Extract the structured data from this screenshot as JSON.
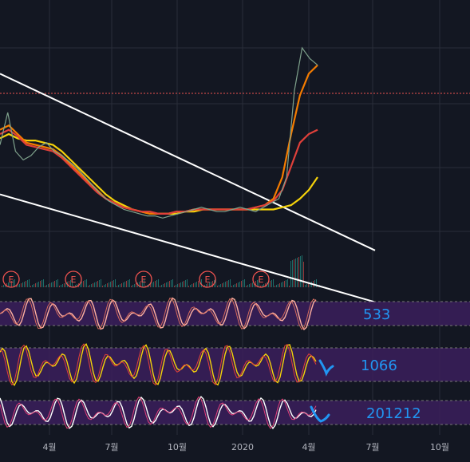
{
  "chart_data": {
    "type": "line",
    "title": "",
    "header_fragment": "",
    "x_ticks": [
      "4월",
      "7월",
      "10월",
      "2020",
      "4월",
      "7월",
      "10월"
    ],
    "price": {
      "x_range": [
        0,
        210
      ],
      "y_range": [
        0,
        100
      ],
      "values": [
        55,
        70,
        52,
        48,
        50,
        54,
        56,
        52,
        50,
        47,
        44,
        40,
        36,
        32,
        29,
        27,
        25,
        24,
        23,
        22,
        22,
        21,
        22,
        23,
        24,
        25,
        26,
        25,
        24,
        24,
        25,
        26,
        25,
        24,
        26,
        28,
        30,
        40,
        80,
        100,
        95,
        92
      ],
      "reference_level": 80,
      "ma_series": [
        {
          "color": "#f5d20a",
          "values": [
            58,
            60,
            58,
            57,
            57,
            56,
            55,
            52,
            48,
            44,
            40,
            36,
            32,
            29,
            27,
            25,
            24,
            23,
            23,
            23,
            23,
            24,
            24,
            25,
            25,
            25,
            25,
            25,
            25,
            25,
            25,
            25,
            26,
            27,
            30,
            34,
            40
          ]
        },
        {
          "color": "#f57c00",
          "values": [
            62,
            64,
            60,
            56,
            55,
            54,
            53,
            50,
            46,
            42,
            38,
            34,
            30,
            28,
            26,
            25,
            24,
            23,
            23,
            23,
            24,
            24,
            25,
            25,
            25,
            25,
            25,
            25,
            25,
            26,
            27,
            30,
            40,
            60,
            78,
            88,
            92
          ]
        },
        {
          "color": "#e0403a",
          "values": [
            60,
            62,
            59,
            55,
            54,
            53,
            52,
            49,
            45,
            41,
            37,
            33,
            30,
            28,
            26,
            25,
            24,
            24,
            23,
            23,
            24,
            24,
            25,
            25,
            25,
            25,
            25,
            25,
            25,
            26,
            27,
            29,
            34,
            45,
            56,
            60,
            62
          ]
        }
      ],
      "trendlines": [
        {
          "from": [
            0,
            88
          ],
          "to": [
            210,
            6
          ]
        },
        {
          "from": [
            0,
            32
          ],
          "to": [
            210,
            -18
          ]
        }
      ],
      "earnings_markers": [
        "E",
        "E",
        "E",
        "E",
        "E"
      ]
    },
    "oscillators": [
      {
        "label": "533",
        "label_color": "#2196f3",
        "line_colors": [
          "#ffb0a0",
          "#d46a5e"
        ]
      },
      {
        "label": "1066",
        "label_color": "#2196f3",
        "line_colors": [
          "#f5d20a",
          "#e0403a"
        ]
      },
      {
        "label": "201212",
        "label_color": "#2196f3",
        "line_colors": [
          "#ffffff",
          "#e0407a"
        ]
      }
    ],
    "grid": true
  },
  "colors": {
    "background": "#131722",
    "grid": "#2a2e39",
    "trendline": "#ffffff",
    "volume_up": "#26a69a",
    "volume_down": "#ef5350",
    "band": "#3b1f5c",
    "annotation": "#2196f3"
  }
}
